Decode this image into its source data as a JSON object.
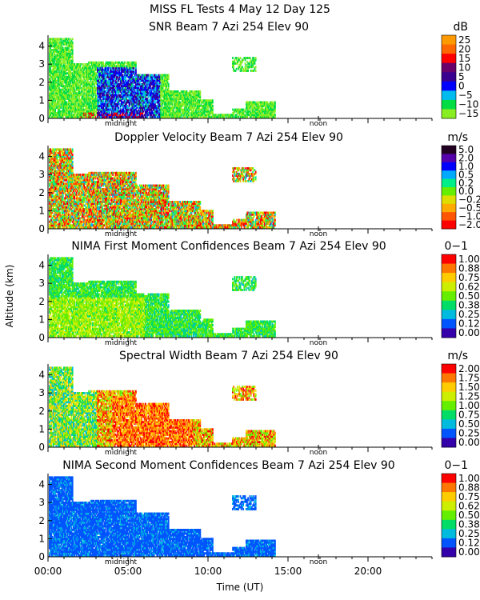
{
  "figure": {
    "suptitle": "MISS FL Tests    4 May 12 Day 125",
    "ylabel": "Altitude (km)",
    "xlabel": "Time (UT)",
    "x_ticks": [
      "00:00",
      "05:00",
      "10:00",
      "15:00",
      "20:00"
    ],
    "marker_midnight": "midnight",
    "marker_noon": "noon"
  },
  "chart_data": [
    {
      "type": "heatmap",
      "title": "SNR Beam 7 Azi 254 Elev 90",
      "units": "dB",
      "x_range_hours": [
        0,
        24
      ],
      "ylim": [
        0,
        4.6
      ],
      "y_ticks": [
        "0",
        "1",
        "2",
        "3",
        "4"
      ],
      "colorbar_labels": [
        "25",
        "20",
        "15",
        "10",
        "5",
        "0",
        "−5",
        "−10",
        "−15"
      ],
      "colors": [
        "#ff9900",
        "#ff6600",
        "#ff0000",
        "#6a006a",
        "#3a0090",
        "#0000ff",
        "#00bbee",
        "#00dd44",
        "#88ee22"
      ]
    },
    {
      "type": "heatmap",
      "title": "Doppler Velocity Beam 7 Azi 254 Elev 90",
      "units": "m/s",
      "x_range_hours": [
        0,
        24
      ],
      "ylim": [
        0,
        4.6
      ],
      "y_ticks": [
        "0",
        "1",
        "2",
        "3",
        "4"
      ],
      "colorbar_labels": [
        "5.0",
        "2.0",
        "1.0",
        "0.5",
        "0.2",
        "0.0",
        "−0.2",
        "−0.5",
        "−1.0",
        "−2.0"
      ],
      "colors": [
        "#220022",
        "#5500aa",
        "#0000ff",
        "#00aaff",
        "#00ee88",
        "#66ee00",
        "#dddd00",
        "#ffaa00",
        "#ff5500",
        "#ff0000"
      ]
    },
    {
      "type": "heatmap",
      "title": "NIMA First Moment Confidences Beam 7 Azi 254 Elev 90",
      "units": "0−1",
      "x_range_hours": [
        0,
        24
      ],
      "ylim": [
        0,
        4.6
      ],
      "y_ticks": [
        "0",
        "1",
        "2",
        "3",
        "4"
      ],
      "colorbar_labels": [
        "1.00",
        "0.88",
        "0.75",
        "0.62",
        "0.50",
        "0.38",
        "0.25",
        "0.12",
        "0.00"
      ],
      "colors": [
        "#ff0000",
        "#ff7700",
        "#ffcc00",
        "#ccee00",
        "#66ee00",
        "#00dd66",
        "#00bbdd",
        "#0055ff",
        "#3300aa"
      ]
    },
    {
      "type": "heatmap",
      "title": "Spectral Width Beam 7 Azi 254 Elev 90",
      "units": "m/s",
      "x_range_hours": [
        0,
        24
      ],
      "ylim": [
        0,
        4.6
      ],
      "y_ticks": [
        "0",
        "1",
        "2",
        "3",
        "4"
      ],
      "colorbar_labels": [
        "2.00",
        "1.75",
        "1.50",
        "1.25",
        "1.00",
        "0.75",
        "0.50",
        "0.25",
        "0.00"
      ],
      "colors": [
        "#ff0000",
        "#ff7700",
        "#ffcc00",
        "#ccee00",
        "#66ee00",
        "#00dd66",
        "#00bbdd",
        "#0055ff",
        "#3300aa"
      ]
    },
    {
      "type": "heatmap",
      "title": "NIMA Second Moment Confidences Beam 7 Azi 254 Elev 90",
      "units": "0−1",
      "x_range_hours": [
        0,
        24
      ],
      "ylim": [
        0,
        4.6
      ],
      "y_ticks": [
        "0",
        "1",
        "2",
        "3",
        "4"
      ],
      "colorbar_labels": [
        "1.00",
        "0.88",
        "0.75",
        "0.62",
        "0.50",
        "0.38",
        "0.25",
        "0.12",
        "0.00"
      ],
      "colors": [
        "#ff0000",
        "#ff7700",
        "#ffcc00",
        "#ccee00",
        "#66ee00",
        "#00dd66",
        "#00bbdd",
        "#0055ff",
        "#3300aa"
      ]
    }
  ]
}
